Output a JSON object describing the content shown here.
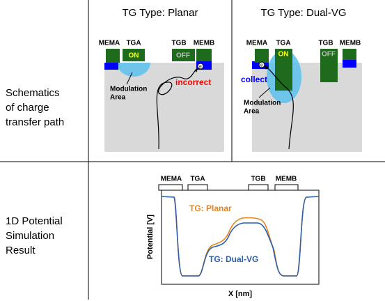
{
  "headers": [
    "TG Type: Planar",
    "TG Type: Dual-VG"
  ],
  "row_labels": [
    {
      "lines": [
        "Schematics",
        "of charge",
        "transfer path"
      ]
    },
    {
      "lines": [
        "1D Potential",
        "Simulation",
        "Result"
      ]
    }
  ],
  "planar": {
    "mema": "MEMA",
    "tga": "TGA",
    "tgb": "TGB",
    "memb": "MEMB",
    "on": "ON",
    "off": "OFF",
    "modulation": [
      "Modulation",
      "Area"
    ],
    "note": "incorrect"
  },
  "dual_vg": {
    "mema": "MEMA",
    "tga": "TGA",
    "tgb": "TGB",
    "memb": "MEMB",
    "on": "ON",
    "off": "OFF",
    "modulation": [
      "Modulation",
      "Area"
    ],
    "note": "collect"
  },
  "simulation": {
    "mema": "MEMA",
    "tga": "TGA",
    "tgb": "TGB",
    "memb": "MEMB",
    "y_label": "Potential [V]",
    "x_label": "X [nm]",
    "planar_label": "TG: Planar",
    "dual_label": "TG: Dual-VG"
  }
}
